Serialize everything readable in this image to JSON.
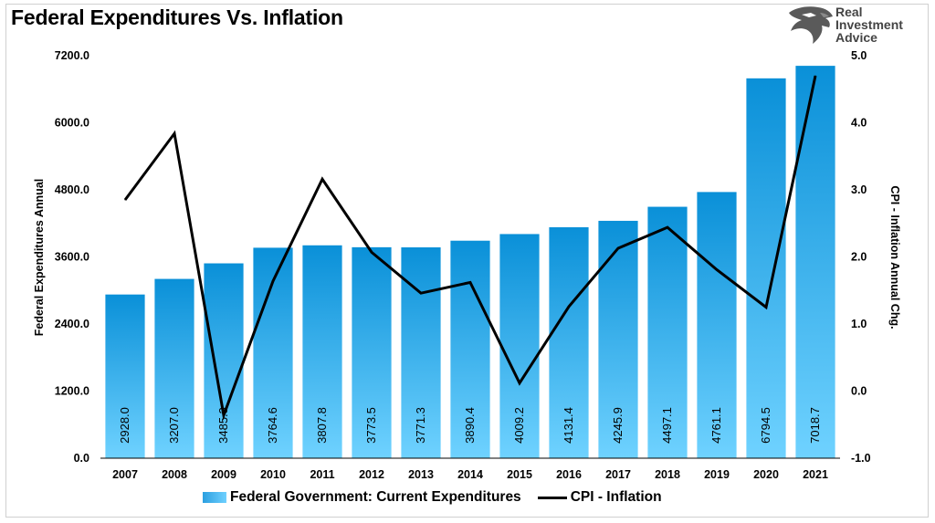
{
  "title": "Federal Expenditures Vs. Inflation",
  "logo": {
    "lines": [
      "Real",
      "Investment",
      "Advice"
    ],
    "icon": "eagle-head-icon"
  },
  "colors": {
    "bar_top": "#0a90d8",
    "bar_bottom": "#6fd2ff",
    "line": "#000000"
  },
  "chart_data": {
    "type": "bar",
    "categories": [
      "2007",
      "2008",
      "2009",
      "2010",
      "2011",
      "2012",
      "2013",
      "2014",
      "2015",
      "2016",
      "2017",
      "2018",
      "2019",
      "2020",
      "2021"
    ],
    "series": [
      {
        "name": "Federal Government: Current Expenditures",
        "type": "bar",
        "axis": "left",
        "values": [
          2928.0,
          3207.0,
          3485.3,
          3764.6,
          3807.8,
          3773.5,
          3771.3,
          3890.4,
          4009.2,
          4131.4,
          4245.9,
          4497.1,
          4761.1,
          6794.5,
          7018.7
        ],
        "labels": [
          "2928.0",
          "3207.0",
          "3485.3",
          "3764.6",
          "3807.8",
          "3773.5",
          "3771.3",
          "3890.4",
          "4009.2",
          "4131.4",
          "4245.9",
          "4497.1",
          "4761.1",
          "6794.5",
          "7018.7"
        ]
      },
      {
        "name": "CPI - Inflation",
        "type": "line",
        "axis": "right",
        "values": [
          2.85,
          3.84,
          -0.36,
          1.64,
          3.16,
          2.07,
          1.46,
          1.62,
          0.12,
          1.26,
          2.13,
          2.44,
          1.81,
          1.25,
          4.7
        ]
      }
    ],
    "ylabel": "Federal Expenditures Annual",
    "y2label": "CPI - Inflation Annual Chg.",
    "ylim": [
      0,
      7200
    ],
    "y2lim": [
      -1.0,
      5.0
    ],
    "yticks": [
      "0.0",
      "1200.0",
      "2400.0",
      "3600.0",
      "4800.0",
      "6000.0",
      "7200.0"
    ],
    "y2ticks": [
      "-1.0",
      "0.0",
      "1.0",
      "2.0",
      "3.0",
      "4.0",
      "5.0"
    ],
    "grid": false,
    "legend": "bottom"
  }
}
